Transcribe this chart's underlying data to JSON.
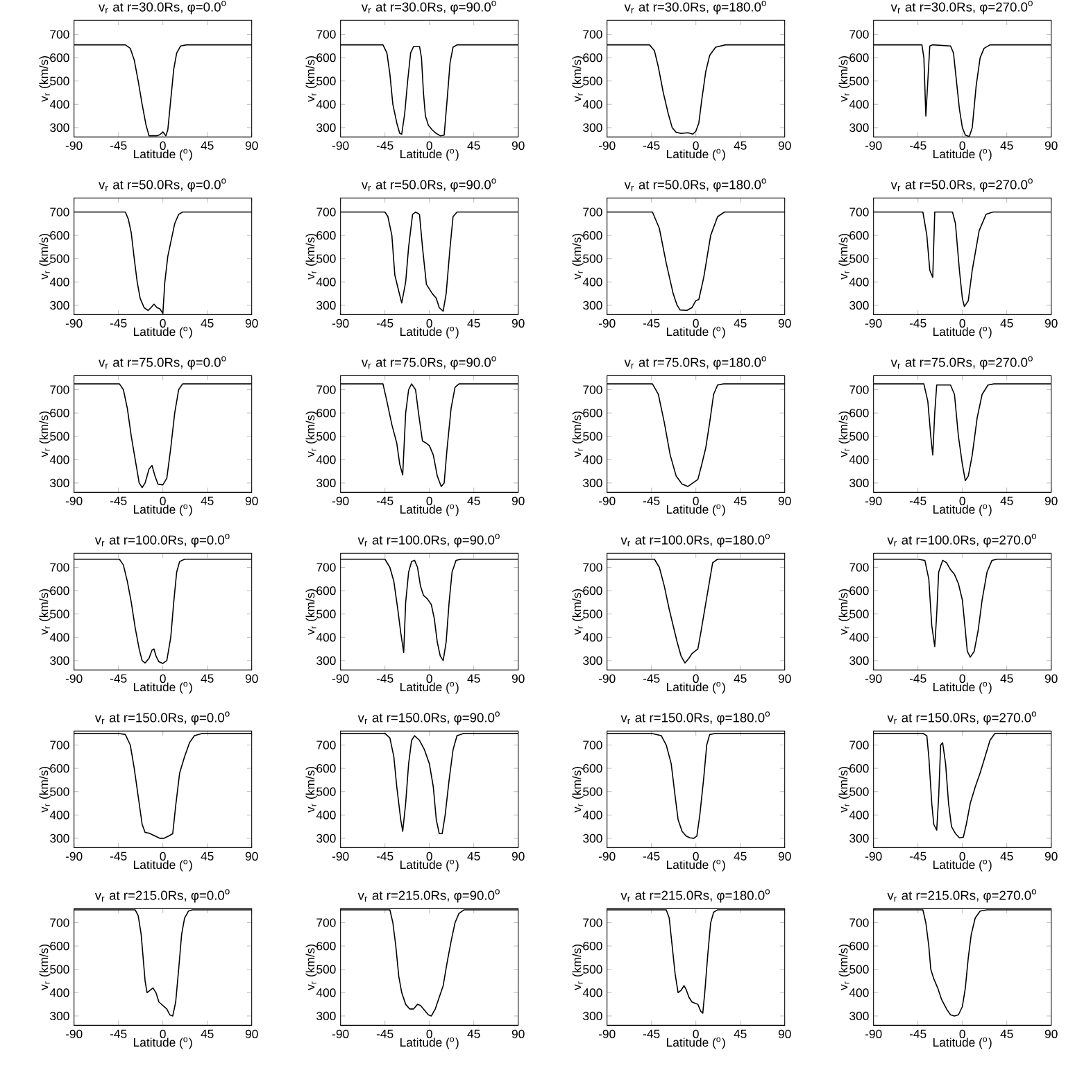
{
  "chart_data": [
    {
      "type": "line",
      "title": "v$_{r}$ at r=30.0Rs, φ=0.0$^{o}$",
      "xlabel": "Latitude ($^{o}$)",
      "ylabel": "v$_{r}$ (km/s)",
      "xlim": [
        -90,
        90
      ],
      "ylim": [
        260,
        760
      ],
      "xticks": [
        -90,
        -45,
        0,
        45,
        90
      ],
      "yticks": [
        300,
        400,
        500,
        600,
        700
      ],
      "color": "#000000",
      "x": [
        -90,
        -38,
        -33,
        -29,
        -25,
        -21,
        -17,
        -14,
        -6,
        -3,
        0,
        3,
        5,
        8,
        11,
        14,
        18,
        24,
        90
      ],
      "values": [
        655,
        655,
        640,
        590,
        500,
        400,
        310,
        265,
        265,
        270,
        282,
        265,
        290,
        420,
        550,
        620,
        650,
        655,
        655
      ]
    },
    {
      "type": "line",
      "title": "v$_{r}$ at r=30.0Rs, φ=90.0$^{o}$",
      "xlabel": "Latitude ($^{o}$)",
      "ylabel": "v$_{r}$ (km/s)",
      "xlim": [
        -90,
        90
      ],
      "ylim": [
        260,
        760
      ],
      "xticks": [
        -90,
        -45,
        0,
        45,
        90
      ],
      "yticks": [
        300,
        400,
        500,
        600,
        700
      ],
      "color": "#000000",
      "x": [
        -90,
        -47,
        -43,
        -40,
        -37,
        -33,
        -30,
        -28,
        -25,
        -22,
        -19,
        -16,
        -10,
        -8,
        -6,
        -4,
        -1,
        3,
        7,
        11,
        15,
        18,
        21,
        24,
        28,
        90
      ],
      "values": [
        655,
        655,
        620,
        530,
        400,
        320,
        275,
        272,
        360,
        500,
        620,
        648,
        648,
        600,
        450,
        350,
        310,
        290,
        275,
        265,
        268,
        420,
        580,
        645,
        655,
        655
      ]
    },
    {
      "type": "line",
      "title": "v$_{r}$ at r=30.0Rs, φ=180.0$^{o}$",
      "xlabel": "Latitude ($^{o}$)",
      "ylabel": "v$_{r}$ (km/s)",
      "xlim": [
        -90,
        90
      ],
      "ylim": [
        260,
        760
      ],
      "xticks": [
        -90,
        -45,
        0,
        45,
        90
      ],
      "yticks": [
        300,
        400,
        500,
        600,
        700
      ],
      "color": "#000000",
      "x": [
        -90,
        -47,
        -42,
        -38,
        -33,
        -28,
        -24,
        -20,
        -15,
        -8,
        -3,
        0,
        3,
        6,
        10,
        14,
        20,
        30,
        90
      ],
      "values": [
        655,
        655,
        630,
        560,
        450,
        360,
        300,
        280,
        275,
        278,
        272,
        285,
        320,
        420,
        540,
        610,
        645,
        655,
        655
      ]
    },
    {
      "type": "line",
      "title": "v$_{r}$ at r=30.0Rs, φ=270.0$^{o}$",
      "xlabel": "Latitude ($^{o}$)",
      "ylabel": "v$_{r}$ (km/s)",
      "xlim": [
        -90,
        90
      ],
      "ylim": [
        260,
        760
      ],
      "xticks": [
        -90,
        -45,
        0,
        45,
        90
      ],
      "yticks": [
        300,
        400,
        500,
        600,
        700
      ],
      "color": "#000000",
      "x": [
        -90,
        -41,
        -39,
        -37,
        -35,
        -33,
        -30,
        -12,
        -9,
        -6,
        -3,
        0,
        3,
        7,
        10,
        14,
        18,
        22,
        28,
        90
      ],
      "values": [
        655,
        655,
        600,
        350,
        500,
        650,
        655,
        650,
        620,
        500,
        380,
        300,
        268,
        262,
        300,
        480,
        600,
        640,
        655,
        655
      ]
    },
    {
      "type": "line",
      "title": "v$_{r}$ at r=50.0Rs, φ=0.0$^{o}$",
      "xlabel": "Latitude ($^{o}$)",
      "ylabel": "v$_{r}$ (km/s)",
      "xlim": [
        -90,
        90
      ],
      "ylim": [
        260,
        760
      ],
      "xticks": [
        -90,
        -45,
        0,
        45,
        90
      ],
      "yticks": [
        300,
        400,
        500,
        600,
        700
      ],
      "color": "#000000",
      "x": [
        -90,
        -38,
        -35,
        -32,
        -29,
        -26,
        -23,
        -19,
        -15,
        -12,
        -9,
        -6,
        -3,
        0,
        2,
        5,
        8,
        12,
        16,
        20,
        90
      ],
      "values": [
        700,
        700,
        670,
        610,
        500,
        400,
        330,
        290,
        278,
        290,
        305,
        290,
        285,
        265,
        400,
        510,
        570,
        650,
        690,
        700,
        700
      ]
    },
    {
      "type": "line",
      "title": "v$_{r}$ at r=50.0Rs, φ=90.0$^{o}$",
      "xlabel": "Latitude ($^{o}$)",
      "ylabel": "v$_{r}$ (km/s)",
      "xlim": [
        -90,
        90
      ],
      "ylim": [
        260,
        760
      ],
      "xticks": [
        -90,
        -45,
        0,
        45,
        90
      ],
      "yticks": [
        300,
        400,
        500,
        600,
        700
      ],
      "color": "#000000",
      "x": [
        -90,
        -45,
        -42,
        -38,
        -35,
        -31,
        -28,
        -24,
        -21,
        -17,
        -14,
        -10,
        -7,
        -3,
        0,
        3,
        7,
        10,
        14,
        17,
        21,
        24,
        28,
        90
      ],
      "values": [
        700,
        700,
        680,
        600,
        430,
        360,
        310,
        400,
        550,
        690,
        700,
        690,
        550,
        390,
        370,
        350,
        330,
        290,
        275,
        350,
        550,
        680,
        700,
        700
      ]
    },
    {
      "type": "line",
      "title": "v$_{r}$ at r=50.0Rs, φ=180.0$^{o}$",
      "xlabel": "Latitude ($^{o}$)",
      "ylabel": "v$_{r}$ (km/s)",
      "xlim": [
        -90,
        90
      ],
      "ylim": [
        260,
        760
      ],
      "xticks": [
        -90,
        -45,
        0,
        45,
        90
      ],
      "yticks": [
        300,
        400,
        500,
        600,
        700
      ],
      "color": "#000000",
      "x": [
        -90,
        -44,
        -37,
        -30,
        -23,
        -19,
        -16,
        -9,
        -4,
        0,
        3,
        8,
        15,
        22,
        29,
        90
      ],
      "values": [
        700,
        700,
        630,
        480,
        350,
        300,
        280,
        278,
        290,
        320,
        325,
        420,
        600,
        680,
        700,
        700
      ]
    },
    {
      "type": "line",
      "title": "v$_{r}$ at r=50.0Rs, φ=270.0$^{o}$",
      "xlabel": "Latitude ($^{o}$)",
      "ylabel": "v$_{r}$ (km/s)",
      "xlim": [
        -90,
        90
      ],
      "ylim": [
        260,
        760
      ],
      "xticks": [
        -90,
        -45,
        0,
        45,
        90
      ],
      "yticks": [
        300,
        400,
        500,
        600,
        700
      ],
      "color": "#000000",
      "x": [
        -90,
        -40,
        -36,
        -33,
        -30,
        -28,
        -10,
        -7,
        -3,
        0,
        2,
        6,
        10,
        17,
        24,
        31,
        90
      ],
      "values": [
        700,
        700,
        600,
        450,
        420,
        700,
        700,
        650,
        450,
        330,
        295,
        320,
        450,
        620,
        690,
        700,
        700
      ]
    },
    {
      "type": "line",
      "title": "v$_{r}$ at r=75.0Rs, φ=0.0$^{o}$",
      "xlabel": "Latitude ($^{o}$)",
      "ylabel": "v$_{r}$ (km/s)",
      "xlim": [
        -90,
        90
      ],
      "ylim": [
        260,
        760
      ],
      "xticks": [
        -90,
        -45,
        0,
        45,
        90
      ],
      "yticks": [
        300,
        400,
        500,
        600,
        700
      ],
      "color": "#000000",
      "x": [
        -90,
        -44,
        -40,
        -36,
        -32,
        -28,
        -24,
        -21,
        -18,
        -14,
        -11,
        -8,
        -5,
        0,
        4,
        8,
        12,
        16,
        20,
        90
      ],
      "values": [
        725,
        725,
        700,
        620,
        500,
        400,
        300,
        280,
        300,
        360,
        375,
        330,
        295,
        292,
        320,
        450,
        600,
        700,
        725,
        725
      ]
    },
    {
      "type": "line",
      "title": "v$_{r}$ at r=75.0Rs, φ=90.0$^{o}$",
      "xlabel": "Latitude ($^{o}$)",
      "ylabel": "v$_{r}$ (km/s)",
      "xlim": [
        -90,
        90
      ],
      "ylim": [
        260,
        760
      ],
      "xticks": [
        -90,
        -45,
        0,
        45,
        90
      ],
      "yticks": [
        300,
        400,
        500,
        600,
        700
      ],
      "color": "#000000",
      "x": [
        -90,
        -47,
        -43,
        -38,
        -33,
        -30,
        -27,
        -24,
        -21,
        -18,
        -14,
        -11,
        -7,
        -3,
        0,
        4,
        8,
        12,
        15,
        18,
        22,
        26,
        30,
        90
      ],
      "values": [
        725,
        725,
        650,
        550,
        470,
        380,
        335,
        600,
        700,
        725,
        700,
        600,
        480,
        470,
        460,
        420,
        330,
        285,
        300,
        450,
        620,
        710,
        725,
        725
      ]
    },
    {
      "type": "line",
      "title": "v$_{r}$ at r=75.0Rs, φ=180.0$^{o}$",
      "xlabel": "Latitude ($^{o}$)",
      "ylabel": "v$_{r}$ (km/s)",
      "xlim": [
        -90,
        90
      ],
      "ylim": [
        260,
        760
      ],
      "xticks": [
        -90,
        -45,
        0,
        45,
        90
      ],
      "yticks": [
        300,
        400,
        500,
        600,
        700
      ],
      "color": "#000000",
      "x": [
        -90,
        -44,
        -38,
        -32,
        -26,
        -20,
        -14,
        -8,
        -3,
        2,
        6,
        10,
        14,
        18,
        22,
        28,
        90
      ],
      "values": [
        725,
        725,
        680,
        560,
        420,
        330,
        295,
        285,
        300,
        315,
        380,
        450,
        560,
        680,
        720,
        725,
        725
      ]
    },
    {
      "type": "line",
      "title": "v$_{r}$ at r=75.0Rs, φ=270.0$^{o}$",
      "xlabel": "Latitude ($^{o}$)",
      "ylabel": "v$_{r}$ (km/s)",
      "xlim": [
        -90,
        90
      ],
      "ylim": [
        260,
        760
      ],
      "xticks": [
        -90,
        -45,
        0,
        45,
        90
      ],
      "yticks": [
        300,
        400,
        500,
        600,
        700
      ],
      "color": "#000000",
      "x": [
        -90,
        -39,
        -35,
        -32,
        -30,
        -28,
        -26,
        -12,
        -8,
        -4,
        0,
        3,
        6,
        10,
        15,
        20,
        26,
        32,
        90
      ],
      "values": [
        725,
        725,
        650,
        500,
        420,
        600,
        720,
        720,
        680,
        500,
        380,
        310,
        330,
        420,
        580,
        680,
        720,
        725,
        725
      ]
    },
    {
      "type": "line",
      "title": "v$_{r}$ at r=100.0Rs, φ=0.0$^{o}$",
      "xlabel": "Latitude ($^{o}$)",
      "ylabel": "v$_{r}$ (km/s)",
      "xlim": [
        -90,
        90
      ],
      "ylim": [
        260,
        760
      ],
      "xticks": [
        -90,
        -45,
        0,
        45,
        90
      ],
      "yticks": [
        300,
        400,
        500,
        600,
        700
      ],
      "color": "#000000",
      "x": [
        -90,
        -44,
        -40,
        -36,
        -32,
        -28,
        -24,
        -21,
        -18,
        -14,
        -11,
        -9,
        -7,
        -4,
        0,
        4,
        8,
        11,
        14,
        17,
        22,
        90
      ],
      "values": [
        735,
        735,
        710,
        640,
        550,
        440,
        350,
        300,
        290,
        310,
        345,
        350,
        320,
        295,
        288,
        300,
        400,
        550,
        680,
        725,
        735,
        735
      ]
    },
    {
      "type": "line",
      "title": "v$_{r}$ at r=100.0Rs, φ=90.0$^{o}$",
      "xlabel": "Latitude ($^{o}$)",
      "ylabel": "v$_{r}$ (km/s)",
      "xlim": [
        -90,
        90
      ],
      "ylim": [
        260,
        760
      ],
      "xticks": [
        -90,
        -45,
        0,
        45,
        90
      ],
      "yticks": [
        300,
        400,
        500,
        600,
        700
      ],
      "color": "#000000",
      "x": [
        -90,
        -45,
        -40,
        -36,
        -32,
        -29,
        -26,
        -24,
        -21,
        -18,
        -15,
        -12,
        -9,
        -6,
        -2,
        2,
        5,
        8,
        11,
        14,
        17,
        20,
        23,
        27,
        32,
        90
      ],
      "values": [
        735,
        735,
        700,
        640,
        520,
        420,
        335,
        550,
        680,
        725,
        730,
        700,
        620,
        580,
        565,
        540,
        480,
        380,
        320,
        300,
        380,
        550,
        680,
        730,
        735,
        735
      ]
    },
    {
      "type": "line",
      "title": "v$_{r}$ at r=100.0Rs, φ=180.0$^{o}$",
      "xlabel": "Latitude ($^{o}$)",
      "ylabel": "v$_{r}$ (km/s)",
      "xlim": [
        -90,
        90
      ],
      "ylim": [
        260,
        760
      ],
      "xticks": [
        -90,
        -45,
        0,
        45,
        90
      ],
      "yticks": [
        300,
        400,
        500,
        600,
        700
      ],
      "color": "#000000",
      "x": [
        -90,
        -42,
        -37,
        -32,
        -27,
        -23,
        -19,
        -15,
        -11,
        -7,
        -4,
        -1,
        2,
        5,
        9,
        13,
        17,
        22,
        90
      ],
      "values": [
        735,
        735,
        700,
        620,
        520,
        450,
        380,
        320,
        290,
        310,
        330,
        340,
        350,
        420,
        520,
        620,
        720,
        735,
        735
      ]
    },
    {
      "type": "line",
      "title": "v$_{r}$ at r=100.0Rs, φ=270.0$^{o}$",
      "xlabel": "Latitude ($^{o}$)",
      "ylabel": "v$_{r}$ (km/s)",
      "xlim": [
        -90,
        90
      ],
      "ylim": [
        260,
        760
      ],
      "xticks": [
        -90,
        -45,
        0,
        45,
        90
      ],
      "yticks": [
        300,
        400,
        500,
        600,
        700
      ],
      "color": "#000000",
      "x": [
        -90,
        -45,
        -38,
        -34,
        -31,
        -28,
        -26,
        -24,
        -20,
        -16,
        -12,
        -8,
        -4,
        0,
        3,
        5,
        8,
        12,
        16,
        20,
        25,
        30,
        35,
        90
      ],
      "values": [
        735,
        735,
        730,
        650,
        450,
        360,
        500,
        680,
        730,
        720,
        690,
        670,
        630,
        560,
        430,
        340,
        315,
        340,
        430,
        560,
        680,
        730,
        735,
        735
      ]
    },
    {
      "type": "line",
      "title": "v$_{r}$ at r=150.0Rs, φ=0.0$^{o}$",
      "xlabel": "Latitude ($^{o}$)",
      "ylabel": "v$_{r}$ (km/s)",
      "xlim": [
        -90,
        90
      ],
      "ylim": [
        260,
        760
      ],
      "xticks": [
        -90,
        -45,
        0,
        45,
        90
      ],
      "yticks": [
        300,
        400,
        500,
        600,
        700
      ],
      "color": "#000000",
      "x": [
        -90,
        -45,
        -38,
        -33,
        -29,
        -25,
        -21,
        -18,
        -14,
        -8,
        -3,
        1,
        6,
        10,
        13,
        17,
        22,
        27,
        32,
        40,
        90
      ],
      "values": [
        750,
        750,
        745,
        700,
        600,
        480,
        360,
        325,
        322,
        310,
        300,
        300,
        310,
        320,
        440,
        580,
        650,
        710,
        740,
        750,
        750
      ]
    },
    {
      "type": "line",
      "title": "v$_{r}$ at r=150.0Rs, φ=90.0$^{o}$",
      "xlabel": "Latitude ($^{o}$)",
      "ylabel": "v$_{r}$ (km/s)",
      "xlim": [
        -90,
        90
      ],
      "ylim": [
        260,
        760
      ],
      "xticks": [
        -90,
        -45,
        0,
        45,
        90
      ],
      "yticks": [
        300,
        400,
        500,
        600,
        700
      ],
      "color": "#000000",
      "x": [
        -90,
        -45,
        -40,
        -36,
        -33,
        -29,
        -27,
        -24,
        -21,
        -18,
        -15,
        -10,
        -5,
        0,
        4,
        7,
        10,
        13,
        16,
        20,
        24,
        28,
        35,
        90
      ],
      "values": [
        750,
        750,
        730,
        650,
        520,
        380,
        330,
        450,
        620,
        720,
        740,
        720,
        680,
        620,
        520,
        380,
        320,
        320,
        400,
        550,
        680,
        740,
        750,
        750
      ]
    },
    {
      "type": "line",
      "title": "v$_{r}$ at r=150.0Rs, φ=180.0$^{o}$",
      "xlabel": "Latitude ($^{o}$)",
      "ylabel": "v$_{r}$ (km/s)",
      "xlim": [
        -90,
        90
      ],
      "ylim": [
        260,
        760
      ],
      "xticks": [
        -90,
        -45,
        0,
        45,
        90
      ],
      "yticks": [
        300,
        400,
        500,
        600,
        700
      ],
      "color": "#000000",
      "x": [
        -90,
        -45,
        -35,
        -30,
        -25,
        -21,
        -18,
        -14,
        -10,
        -6,
        -2,
        1,
        4,
        8,
        11,
        14,
        20,
        90
      ],
      "values": [
        750,
        750,
        740,
        700,
        620,
        480,
        380,
        330,
        310,
        302,
        300,
        310,
        400,
        560,
        700,
        745,
        750,
        750
      ]
    },
    {
      "type": "line",
      "title": "v$_{r}$ at r=150.0Rs, φ=270.0$^{o}$",
      "xlabel": "Latitude ($^{o}$)",
      "ylabel": "v$_{r}$ (km/s)",
      "xlim": [
        -90,
        90
      ],
      "ylim": [
        260,
        760
      ],
      "xticks": [
        -90,
        -45,
        0,
        45,
        90
      ],
      "yticks": [
        300,
        400,
        500,
        600,
        700
      ],
      "color": "#000000",
      "x": [
        -90,
        -40,
        -36,
        -34,
        -31,
        -29,
        -26,
        -24,
        -22,
        -20,
        -17,
        -14,
        -11,
        -7,
        -3,
        1,
        4,
        8,
        13,
        18,
        23,
        28,
        33,
        90
      ],
      "values": [
        750,
        750,
        740,
        650,
        450,
        360,
        335,
        480,
        700,
        710,
        620,
        450,
        350,
        320,
        302,
        305,
        360,
        450,
        520,
        580,
        650,
        720,
        750,
        750
      ]
    },
    {
      "type": "line",
      "title": "v$_{r}$ at r=215.0Rs, φ=0.0$^{o}$",
      "xlabel": "Latitude ($^{o}$)",
      "ylabel": "v$_{r}$ (km/s)",
      "xlim": [
        -90,
        90
      ],
      "ylim": [
        260,
        760
      ],
      "xticks": [
        -90,
        -45,
        0,
        45,
        90
      ],
      "yticks": [
        300,
        400,
        500,
        600,
        700
      ],
      "color": "#000000",
      "x": [
        -90,
        -28,
        -25,
        -22,
        -20,
        -18,
        -16,
        -13,
        -10,
        -7,
        -4,
        0,
        4,
        7,
        10,
        13,
        16,
        19,
        22,
        26,
        30,
        90
      ],
      "values": [
        755,
        755,
        730,
        650,
        550,
        450,
        400,
        410,
        420,
        400,
        360,
        345,
        330,
        305,
        300,
        360,
        500,
        650,
        720,
        750,
        755,
        755
      ]
    },
    {
      "type": "line",
      "title": "v$_{r}$ at r=215.0Rs, φ=90.0$^{o}$",
      "xlabel": "Latitude ($^{o}$)",
      "ylabel": "v$_{r}$ (km/s)",
      "xlim": [
        -90,
        90
      ],
      "ylim": [
        260,
        760
      ],
      "xticks": [
        -90,
        -45,
        0,
        45,
        90
      ],
      "yticks": [
        300,
        400,
        500,
        600,
        700
      ],
      "color": "#000000",
      "x": [
        -90,
        -40,
        -37,
        -34,
        -31,
        -28,
        -24,
        -20,
        -16,
        -12,
        -9,
        -5,
        -1,
        2,
        6,
        10,
        14,
        18,
        22,
        26,
        30,
        35,
        90
      ],
      "values": [
        755,
        755,
        700,
        600,
        470,
        400,
        350,
        330,
        330,
        350,
        345,
        325,
        305,
        300,
        330,
        380,
        430,
        530,
        620,
        700,
        740,
        755,
        755
      ]
    },
    {
      "type": "line",
      "title": "v$_{r}$ at r=215.0Rs, φ=180.0$^{o}$",
      "xlabel": "Latitude ($^{o}$)",
      "ylabel": "v$_{r}$ (km/s)",
      "xlim": [
        -90,
        90
      ],
      "ylim": [
        260,
        760
      ],
      "xticks": [
        -90,
        -45,
        0,
        45,
        90
      ],
      "yticks": [
        300,
        400,
        500,
        600,
        700
      ],
      "color": "#000000",
      "x": [
        -90,
        -30,
        -27,
        -24,
        -21,
        -18,
        -15,
        -12,
        -10,
        -7,
        -4,
        -1,
        2,
        5,
        7,
        9,
        12,
        15,
        18,
        22,
        90
      ],
      "values": [
        755,
        755,
        720,
        600,
        480,
        400,
        410,
        430,
        415,
        380,
        360,
        355,
        350,
        320,
        312,
        400,
        560,
        700,
        745,
        755,
        755
      ]
    },
    {
      "type": "line",
      "title": "v$_{r}$ at r=215.0Rs, φ=270.0$^{o}$",
      "xlabel": "Latitude ($^{o}$)",
      "ylabel": "v$_{r}$ (km/s)",
      "xlim": [
        -90,
        90
      ],
      "ylim": [
        260,
        760
      ],
      "xticks": [
        -90,
        -45,
        0,
        45,
        90
      ],
      "yticks": [
        300,
        400,
        500,
        600,
        700
      ],
      "color": "#000000",
      "x": [
        -90,
        -40,
        -37,
        -34,
        -32,
        -29,
        -25,
        -21,
        -16,
        -12,
        -8,
        -4,
        0,
        3,
        6,
        9,
        13,
        18,
        25,
        90
      ],
      "values": [
        755,
        755,
        700,
        600,
        500,
        460,
        420,
        370,
        330,
        305,
        300,
        305,
        340,
        420,
        550,
        650,
        720,
        750,
        755,
        755
      ]
    }
  ]
}
